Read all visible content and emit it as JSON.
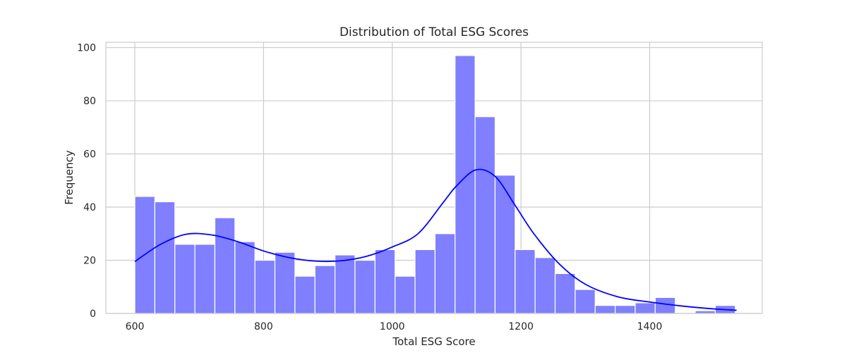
{
  "chart_data": {
    "type": "bar",
    "title": "Distribution of Total ESG Scores",
    "xlabel": "Total ESG Score",
    "ylabel": "Frequency",
    "xlim": [
      555,
      1575
    ],
    "ylim": [
      0,
      102
    ],
    "grid": true,
    "x_ticks": [
      600,
      800,
      1000,
      1200,
      1400
    ],
    "y_ticks": [
      0,
      20,
      40,
      60,
      80,
      100
    ],
    "bin_start": 600,
    "bin_width": 31.1,
    "values": [
      44,
      42,
      26,
      26,
      36,
      27,
      20,
      23,
      14,
      18,
      22,
      20,
      24,
      14,
      24,
      30,
      97,
      74,
      52,
      24,
      21,
      15,
      9,
      3,
      3,
      4,
      6,
      0,
      1,
      3
    ],
    "colors": {
      "bar": "#7f7fff",
      "kde": "#0000ff",
      "grid": "#cccccc",
      "text": "#262626"
    },
    "kde": {
      "x": [
        600,
        640,
        680,
        720,
        760,
        800,
        840,
        880,
        920,
        960,
        1000,
        1040,
        1080,
        1100,
        1130,
        1160,
        1190,
        1220,
        1260,
        1300,
        1350,
        1400,
        1450,
        1500,
        1535
      ],
      "y": [
        19.5,
        26,
        29.8,
        29.5,
        27,
        23.5,
        21,
        19.7,
        19.8,
        21.5,
        25,
        30,
        42,
        48,
        54,
        51.5,
        41,
        30,
        18.5,
        11,
        6.3,
        4.3,
        2.8,
        1.7,
        1.2
      ]
    }
  }
}
